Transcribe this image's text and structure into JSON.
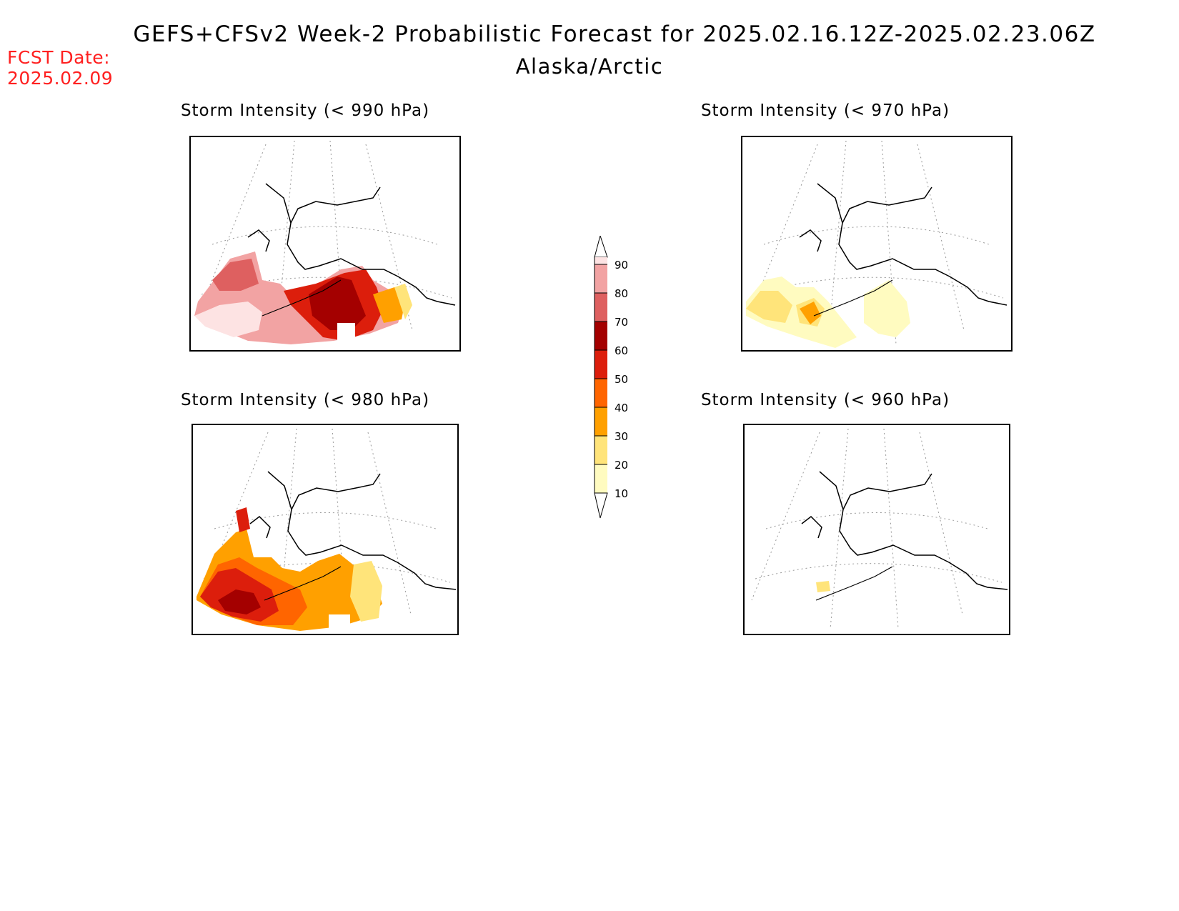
{
  "header": {
    "title": "GEFS+CFSv2 Week-2 Probabilistic Forecast for 2025.02.16.12Z-2025.02.23.06Z",
    "region": "Alaska/Arctic",
    "fcst_label": "FCST Date:",
    "fcst_date": "2025.02.09"
  },
  "panels": [
    {
      "id": "p990",
      "title": "Storm Intensity (< 990 hPa)"
    },
    {
      "id": "p970",
      "title": "Storm Intensity (< 970 hPa)"
    },
    {
      "id": "p980",
      "title": "Storm Intensity (< 980 hPa)"
    },
    {
      "id": "p960",
      "title": "Storm Intensity (< 960 hPa)"
    }
  ],
  "legend": {
    "levels": [
      "90",
      "80",
      "70",
      "60",
      "50",
      "40",
      "30",
      "20",
      "10"
    ],
    "colors": {
      "c10_20": "#fffbc0",
      "c20_30": "#ffe47a",
      "c30_40": "#ffa000",
      "c40_50": "#ff6500",
      "c50_60": "#dc1e0c",
      "c60_70": "#a40000",
      "c70_80": "#de6060",
      "c80_90": "#f2a3a3",
      "c90_100": "#fde3e3"
    }
  }
}
